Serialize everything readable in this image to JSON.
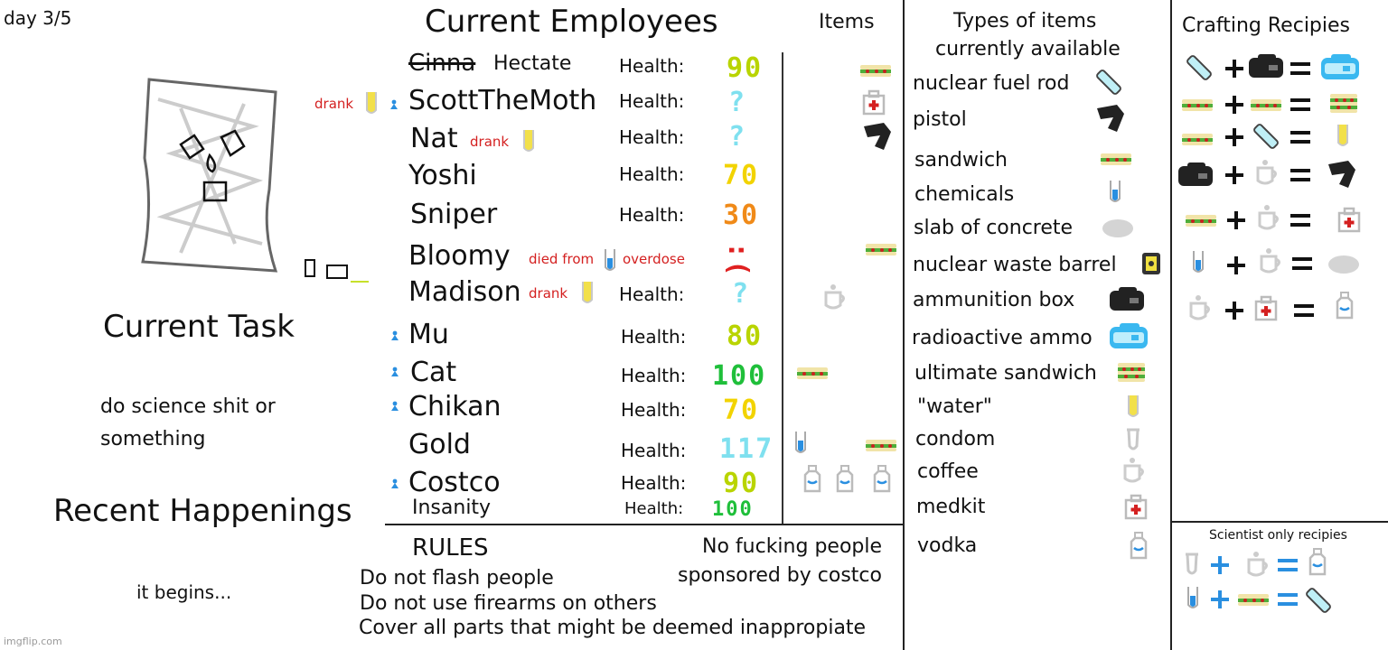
{
  "day": "day 3/5",
  "current_task": {
    "title": "Current Task",
    "text_line1": "do science shit or",
    "text_line2": "something"
  },
  "recent": {
    "title": "Recent Happenings",
    "text": "it begins..."
  },
  "employees": {
    "title": "Current  Employees",
    "items_header": "Items",
    "rows": [
      {
        "name": "Cinna",
        "replacement": "Hectate",
        "health_label": "Health:",
        "health": "90",
        "health_color": "#b9d400"
      },
      {
        "name": "ScottTheMoth",
        "health_label": "Health:",
        "health": "?",
        "health_color": "#7fe0ef"
      },
      {
        "name": "Nat",
        "note": "drank",
        "health_label": "Health:",
        "health": "?",
        "health_color": "#7fe0ef"
      },
      {
        "name": "Yoshi",
        "health_label": "Health:",
        "health": "70",
        "health_color": "#f2d300"
      },
      {
        "name": "Sniper",
        "health_label": "Health:",
        "health": "30",
        "health_color": "#f08a18"
      },
      {
        "name": "Bloomy",
        "note1": "died from",
        "note2": "overdose",
        "health": ":(",
        "health_color": "#e02020"
      },
      {
        "name": "Madison",
        "note": "drank",
        "health_label": "Health:",
        "health": "?",
        "health_color": "#7fe0ef"
      },
      {
        "name": "Mu",
        "health_label": "Health:",
        "health": "80",
        "health_color": "#b9d400"
      },
      {
        "name": "Cat",
        "health_label": "Health:",
        "health": "100",
        "health_color": "#1fbf3a"
      },
      {
        "name": "Chikan",
        "health_label": "Health:",
        "health": "70",
        "health_color": "#f2d300"
      },
      {
        "name": "Gold",
        "health_label": "Health:",
        "health": "117",
        "health_color": "#7fe0ef"
      },
      {
        "name": "Costco",
        "health_label": "Health:",
        "health": "90",
        "health_color": "#b9d400"
      },
      {
        "name": "Insanity",
        "health_label": "Health:",
        "health": "100",
        "health_color": "#1fbf3a"
      }
    ],
    "scott_note": "drank"
  },
  "rules": {
    "title": "RULES",
    "lines": [
      "Do not flash people",
      "Do not use firearms on others",
      "Cover all parts that might be deemed inappropiate"
    ],
    "side_line1": "No fucking people",
    "side_line2": "sponsored by costco"
  },
  "types": {
    "title_line1": "Types of items",
    "title_line2": "currently available",
    "items": [
      "nuclear fuel rod",
      "pistol",
      "sandwich",
      "chemicals",
      "slab of concrete",
      "nuclear waste barrel",
      "ammunition box",
      "radioactive ammo",
      "ultimate sandwich",
      "\"water\"",
      "condom",
      "coffee",
      "medkit",
      "vodka"
    ]
  },
  "crafting": {
    "title": "Crafting Recipies",
    "scientist_title": "Scientist only recipies"
  },
  "watermark": "imgflip.com"
}
